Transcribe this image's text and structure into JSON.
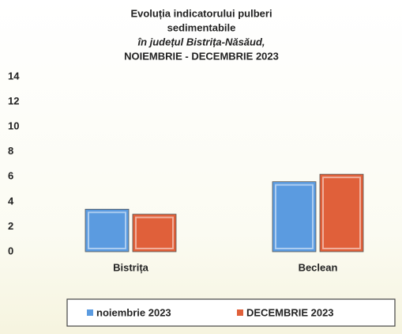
{
  "chart_data": {
    "type": "bar",
    "title": [
      "Evoluția indicatorului pulberi",
      "sedimentabile",
      "în județul Bistrița-Năsăud,",
      "NOIEMBRIE - DECEMBRIE 2023"
    ],
    "categories": [
      "Bistrița",
      "Beclean"
    ],
    "series": [
      {
        "name": "noiembrie 2023",
        "color": "#5b9be0",
        "values": [
          3.4,
          5.6
        ]
      },
      {
        "name": "DECEMBRIE 2023",
        "color": "#e0603a",
        "values": [
          3.0,
          6.2
        ]
      }
    ],
    "ylim": [
      0,
      14
    ],
    "yticks": [
      0,
      2,
      4,
      6,
      8,
      10,
      12,
      14
    ],
    "grid": false,
    "legend": "bottom"
  }
}
